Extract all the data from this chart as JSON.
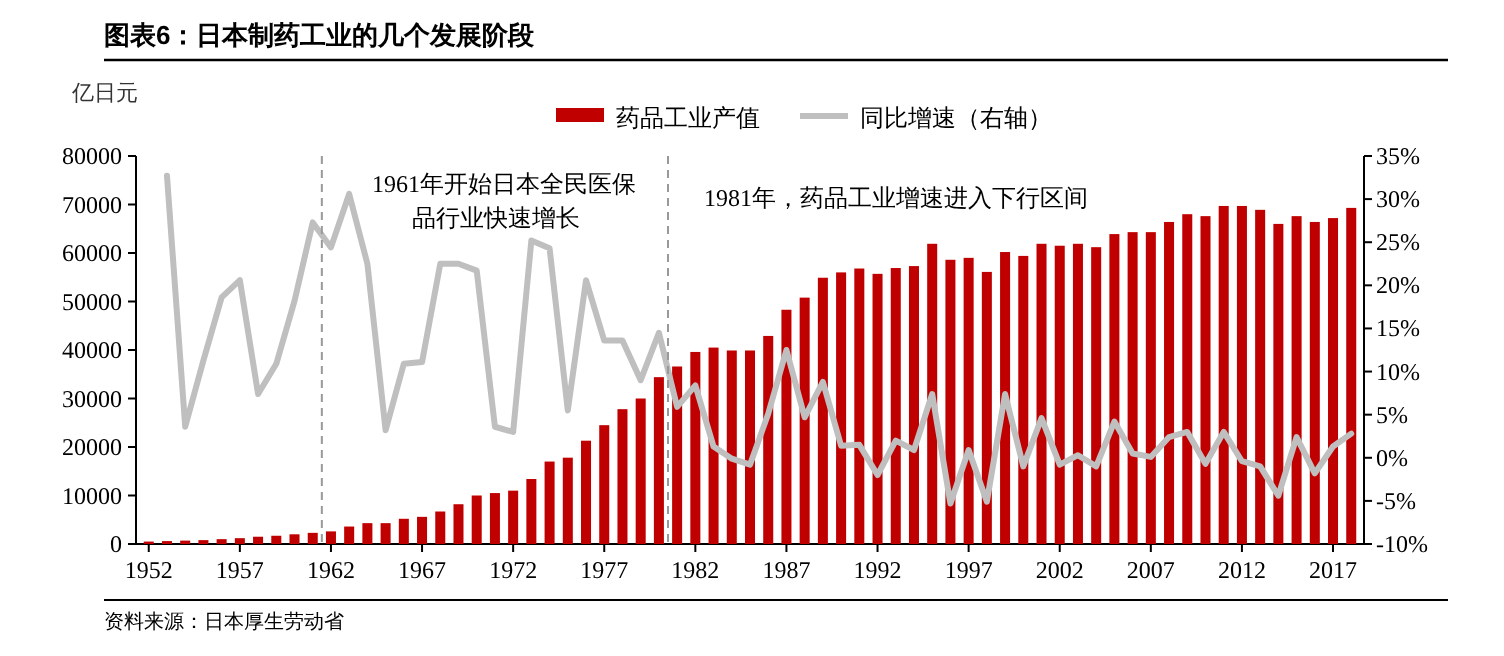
{
  "chart_data": {
    "type": "bar",
    "title": "图表6：日本制药工业的几个发展阶段",
    "ylabel": "亿日元",
    "x": [
      1952,
      1953,
      1954,
      1955,
      1956,
      1957,
      1958,
      1959,
      1960,
      1961,
      1962,
      1963,
      1964,
      1965,
      1966,
      1967,
      1968,
      1969,
      1970,
      1971,
      1972,
      1973,
      1974,
      1975,
      1976,
      1977,
      1978,
      1979,
      1980,
      1981,
      1982,
      1983,
      1984,
      1985,
      1986,
      1987,
      1988,
      1989,
      1990,
      1991,
      1992,
      1993,
      1994,
      1995,
      1996,
      1997,
      1998,
      1999,
      2000,
      2001,
      2002,
      2003,
      2004,
      2005,
      2006,
      2007,
      2008,
      2009,
      2010,
      2011,
      2012,
      2013,
      2014,
      2015,
      2016,
      2017,
      2018
    ],
    "xlim": [
      1951.3,
      2018.7
    ],
    "xticks": [
      1952,
      1957,
      1962,
      1967,
      1972,
      1977,
      1982,
      1987,
      1992,
      1997,
      2002,
      2007,
      2012,
      2017
    ],
    "ylim": [
      0,
      80000
    ],
    "yticks": [
      0,
      10000,
      20000,
      30000,
      40000,
      50000,
      60000,
      70000,
      80000
    ],
    "y2lim": [
      -10,
      35
    ],
    "y2ticks": [
      {
        "value": -10,
        "label": "-10%"
      },
      {
        "value": -5,
        "label": "-5%"
      },
      {
        "value": 0,
        "label": "0%"
      },
      {
        "value": 5,
        "label": "5%"
      },
      {
        "value": 10,
        "label": "10%"
      },
      {
        "value": 15,
        "label": "15%"
      },
      {
        "value": 20,
        "label": "20%"
      },
      {
        "value": 25,
        "label": "25%"
      },
      {
        "value": 30,
        "label": "30%"
      },
      {
        "value": 35,
        "label": "35%"
      }
    ],
    "series": [
      {
        "name": "药品工业产值",
        "color": "#c00000",
        "values": [
          500,
          600,
          700,
          800,
          1000,
          1200,
          1500,
          1700,
          2000,
          2300,
          2600,
          3600,
          4300,
          4300,
          5200,
          5600,
          6700,
          8200,
          10000,
          10500,
          11000,
          13400,
          17000,
          17800,
          21300,
          24500,
          27800,
          30000,
          34400,
          36600,
          39600,
          40500,
          39900,
          39900,
          42900,
          48300,
          50800,
          54900,
          56000,
          56800,
          55700,
          56900,
          57300,
          61900,
          58600,
          59000,
          56100,
          60200,
          59400,
          61900,
          61500,
          61900,
          61200,
          63900,
          64300,
          64300,
          66400,
          68000,
          67600,
          69700,
          69700,
          68900,
          66000,
          67600,
          66400,
          67200,
          69300
        ]
      },
      {
        "name": "同比增速（右轴）",
        "type": "line",
        "axis": "y2",
        "color": "#bfbfbf",
        "values": [
          null,
          32.7,
          3.6,
          11.3,
          18.6,
          20.6,
          7.4,
          10.9,
          18.2,
          27.3,
          24.4,
          30.6,
          22.5,
          3.2,
          10.9,
          11.1,
          22.5,
          22.5,
          21.7,
          3.6,
          3.0,
          25.2,
          24.3,
          5.5,
          20.6,
          13.6,
          13.6,
          9.0,
          14.5,
          5.9,
          8.4,
          1.3,
          -0.1,
          -0.8,
          5.1,
          12.5,
          4.7,
          8.8,
          1.4,
          1.5,
          -2.0,
          2.0,
          0.9,
          7.4,
          -5.3,
          0.9,
          -5.1,
          7.4,
          -1.0,
          4.6,
          -0.8,
          0.3,
          -1.0,
          4.2,
          0.5,
          0.1,
          2.4,
          3.0,
          -0.7,
          3.0,
          -0.4,
          -1.0,
          -4.4,
          2.4,
          -1.8,
          1.3,
          2.8
        ]
      }
    ],
    "ref_lines": [
      {
        "axis": "x",
        "value": 1961.5,
        "label": "1961年开始日本全民医保品行业快速增长",
        "color": "#999999",
        "line_style": "dashed"
      },
      {
        "axis": "x",
        "value": 1980.5,
        "label": "1981年，药品工业增速进入下行区间",
        "color": "#999999",
        "line_style": "dashed"
      }
    ],
    "annotations": [
      "资料来源：日本厚生劳动省"
    ],
    "legend": "top"
  }
}
